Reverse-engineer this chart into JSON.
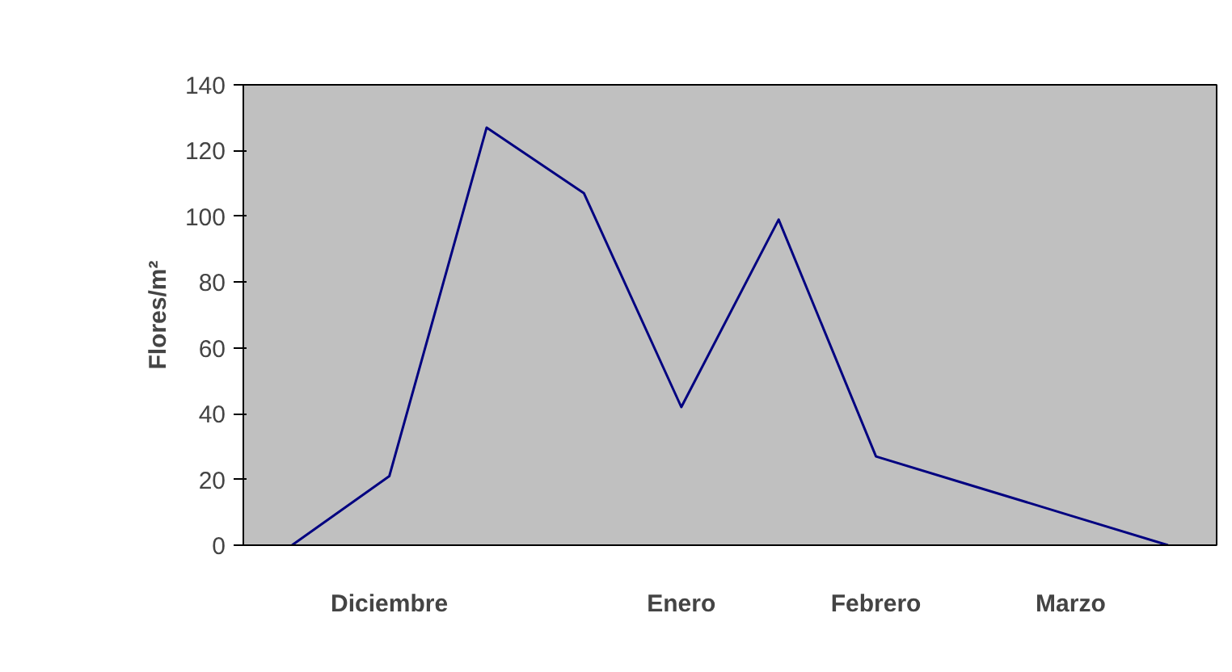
{
  "chart_data": {
    "type": "line",
    "ylabel": "Flores/m²",
    "categories": [
      null,
      "Diciembre",
      null,
      null,
      "Enero",
      null,
      "Febrero",
      null,
      "Marzo",
      null
    ],
    "series": [
      {
        "color": "#000080",
        "values": [
          0,
          21,
          127,
          107,
          42,
          99,
          27,
          18,
          9,
          0
        ]
      }
    ],
    "ylim": [
      0,
      140
    ],
    "yticks": [
      0,
      20,
      40,
      60,
      80,
      100,
      120,
      140
    ],
    "grid": false,
    "marker": "none",
    "line_style": "solid"
  }
}
